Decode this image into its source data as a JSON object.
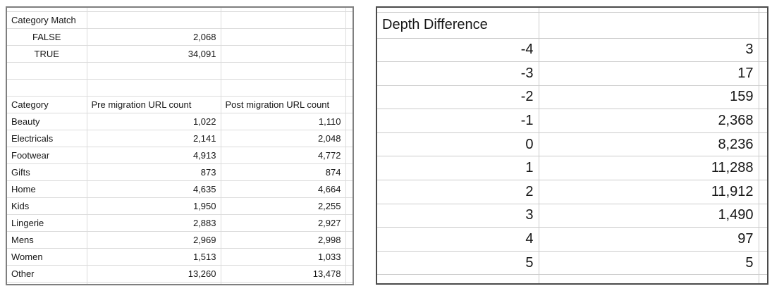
{
  "left_table": {
    "title": "Category Match",
    "summary_rows": [
      {
        "label": "FALSE",
        "value": "2,068"
      },
      {
        "label": "TRUE",
        "value": "34,091"
      }
    ],
    "column_headers": [
      "Category",
      "Pre migration URL count",
      "Post migration URL count"
    ],
    "rows": [
      {
        "category": "Beauty",
        "pre": "1,022",
        "post": "1,110"
      },
      {
        "category": "Electricals",
        "pre": "2,141",
        "post": "2,048"
      },
      {
        "category": "Footwear",
        "pre": "4,913",
        "post": "4,772"
      },
      {
        "category": "Gifts",
        "pre": "873",
        "post": "874"
      },
      {
        "category": "Home",
        "pre": "4,635",
        "post": "4,664"
      },
      {
        "category": "Kids",
        "pre": "1,950",
        "post": "2,255"
      },
      {
        "category": "Lingerie",
        "pre": "2,883",
        "post": "2,927"
      },
      {
        "category": "Mens",
        "pre": "2,969",
        "post": "2,998"
      },
      {
        "category": "Women",
        "pre": "1,513",
        "post": "1,033"
      },
      {
        "category": "Other",
        "pre": "13,260",
        "post": "13,478"
      }
    ]
  },
  "right_table": {
    "title": "Depth Difference",
    "rows": [
      {
        "depth": "-4",
        "count": "3"
      },
      {
        "depth": "-3",
        "count": "17"
      },
      {
        "depth": "-2",
        "count": "159"
      },
      {
        "depth": "-1",
        "count": "2,368"
      },
      {
        "depth": "0",
        "count": "8,236"
      },
      {
        "depth": "1",
        "count": "11,288"
      },
      {
        "depth": "2",
        "count": "11,912"
      },
      {
        "depth": "3",
        "count": "1,490"
      },
      {
        "depth": "4",
        "count": "97"
      },
      {
        "depth": "5",
        "count": "5"
      }
    ]
  },
  "colors": {
    "left_table_border": "#7f7f7f",
    "right_table_border": "#4a4a4a",
    "left_grid_line": "#dcdcdc",
    "right_grid_line": "#cccccc",
    "text": "#161616",
    "background": "#ffffff"
  }
}
